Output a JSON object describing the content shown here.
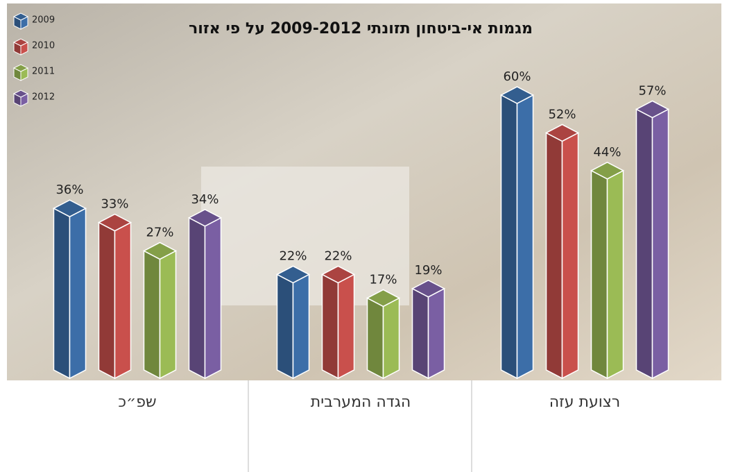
{
  "chart_data": {
    "type": "bar3d",
    "title": "מגמות אי-ביטחון תזונתי 2009-2012 על פי אזור",
    "categories": [
      "שפ״כ",
      "הגדה המערבית",
      "רצועת עזה"
    ],
    "ylim": [
      0,
      60
    ],
    "series": [
      {
        "name": "2009",
        "color": "#3c6ea8",
        "values": [
          36,
          22,
          60
        ],
        "value_labels": [
          "36%",
          "22%",
          "60%"
        ]
      },
      {
        "name": "2010",
        "color": "#c9504c",
        "values": [
          33,
          22,
          52
        ],
        "value_labels": [
          "33%",
          "22%",
          "52%"
        ]
      },
      {
        "name": "2011",
        "color": "#9bbb55",
        "values": [
          27,
          17,
          44
        ],
        "value_labels": [
          "27%",
          "17%",
          "44%"
        ]
      },
      {
        "name": "2012",
        "color": "#7a5fa3",
        "values": [
          34,
          19,
          57
        ],
        "value_labels": [
          "34%",
          "19%",
          "57%"
        ]
      }
    ]
  }
}
